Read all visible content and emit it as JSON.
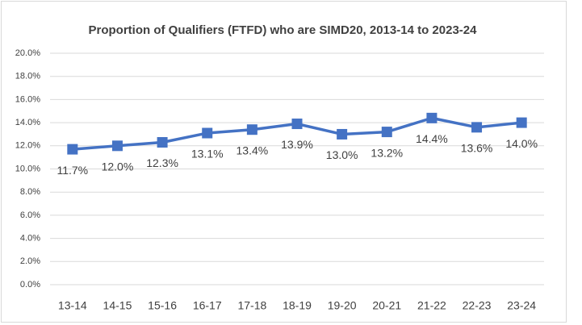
{
  "chart_data": {
    "type": "line",
    "title": "Proportion of Qualifiers (FTFD) who are SIMD20, 2013-14 to 2023-24",
    "categories": [
      "13-14",
      "14-15",
      "15-16",
      "16-17",
      "17-18",
      "18-19",
      "19-20",
      "20-21",
      "21-22",
      "22-23",
      "23-24"
    ],
    "series": [
      {
        "name": "SIMD20",
        "color": "#4472c4",
        "values": [
          11.7,
          12.0,
          12.3,
          13.1,
          13.4,
          13.9,
          13.0,
          13.2,
          14.4,
          13.6,
          14.0
        ],
        "value_labels": [
          "11.7%",
          "12.0%",
          "12.3%",
          "13.1%",
          "13.4%",
          "13.9%",
          "13.0%",
          "13.2%",
          "14.4%",
          "13.6%",
          "14.0%"
        ]
      }
    ],
    "ylim": [
      0,
      20
    ],
    "yticks": [
      {
        "value": 0,
        "label": "0.0%"
      },
      {
        "value": 2,
        "label": "2.0%"
      },
      {
        "value": 4,
        "label": "4.0%"
      },
      {
        "value": 6,
        "label": "6.0%"
      },
      {
        "value": 8,
        "label": "8.0%"
      },
      {
        "value": 10,
        "label": "10.0%"
      },
      {
        "value": 12,
        "label": "12.0%"
      },
      {
        "value": 14,
        "label": "14.0%"
      },
      {
        "value": 16,
        "label": "16.0%"
      },
      {
        "value": 18,
        "label": "18.0%"
      },
      {
        "value": 20,
        "label": "20.0%"
      }
    ],
    "grid": true
  }
}
